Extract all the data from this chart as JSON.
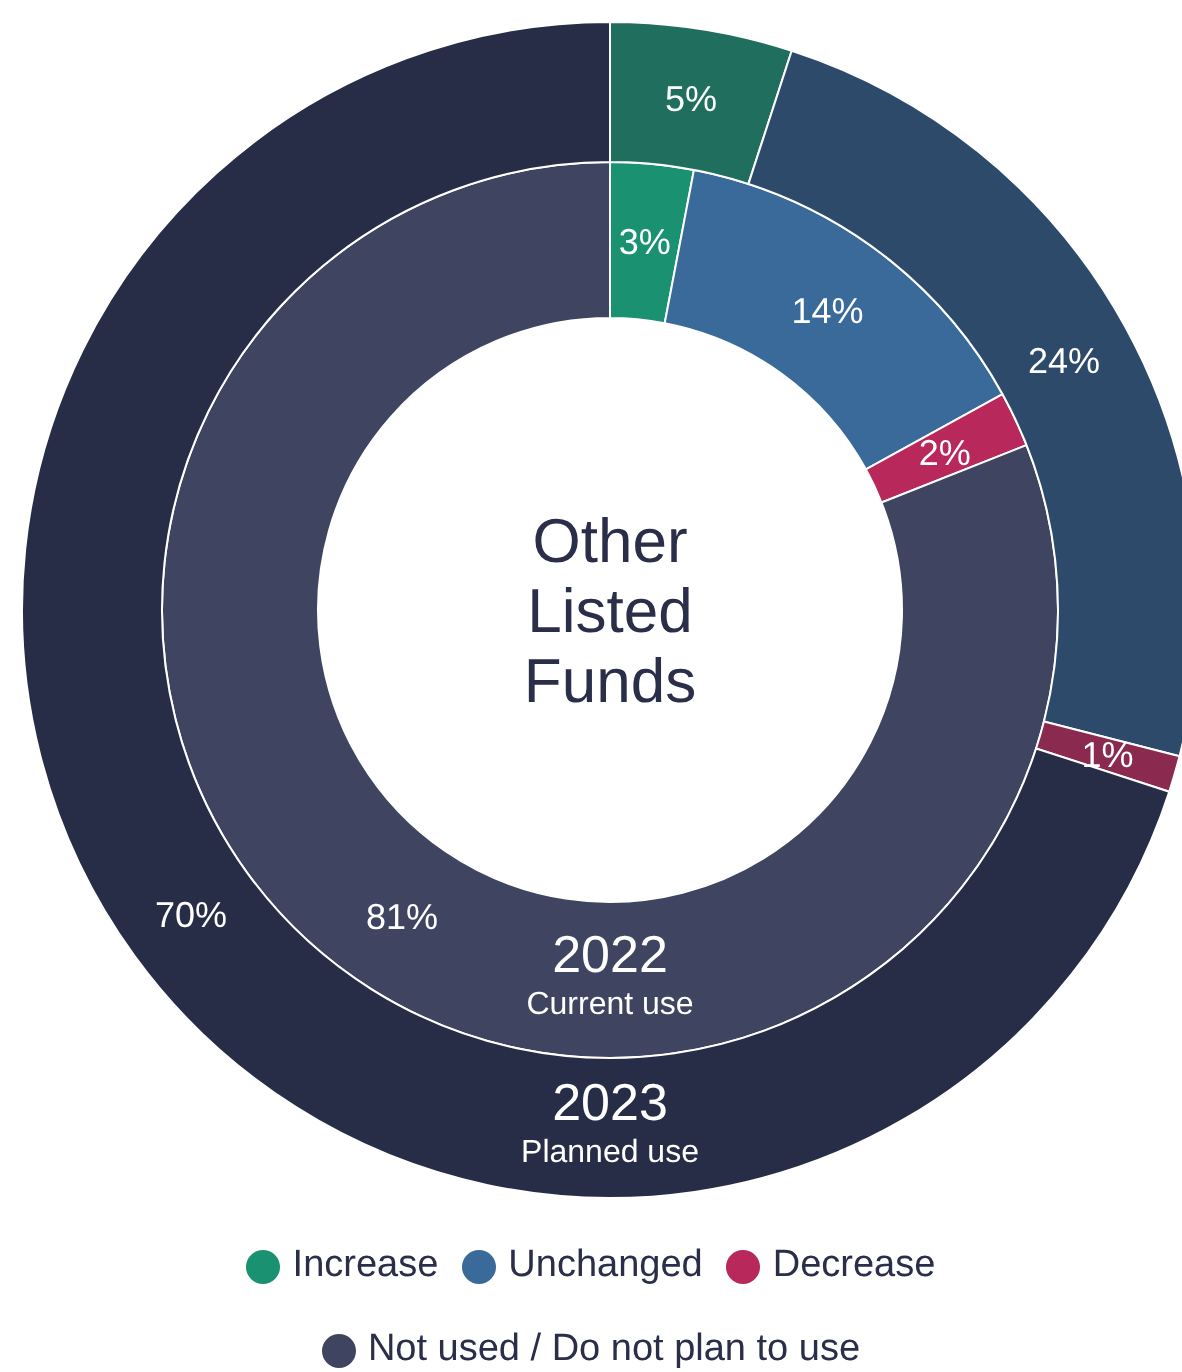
{
  "chart_data": {
    "type": "donut",
    "title": "Other Listed Funds",
    "categories": [
      "Increase",
      "Unchanged",
      "Decrease",
      "Not used / Do not plan to use"
    ],
    "series": [
      {
        "name": "2022",
        "values": [
          3,
          14,
          2,
          81
        ],
        "colors": [
          "#1a9170",
          "#3a6a9a",
          "#b8285a",
          "#3f4560"
        ],
        "value_labels": [
          "3%",
          "14%",
          "2%",
          "81%"
        ]
      },
      {
        "name": "2023",
        "values": [
          5,
          24,
          1,
          70
        ],
        "colors": [
          "#1f6e5e",
          "#2e4a6b",
          "#8a2a4e",
          "#282d47"
        ],
        "value_labels": [
          "5%",
          "24%",
          "1%",
          "70%"
        ]
      }
    ],
    "annotations": [
      "Current use",
      "Planned use"
    ],
    "legend": "bottom"
  }
}
